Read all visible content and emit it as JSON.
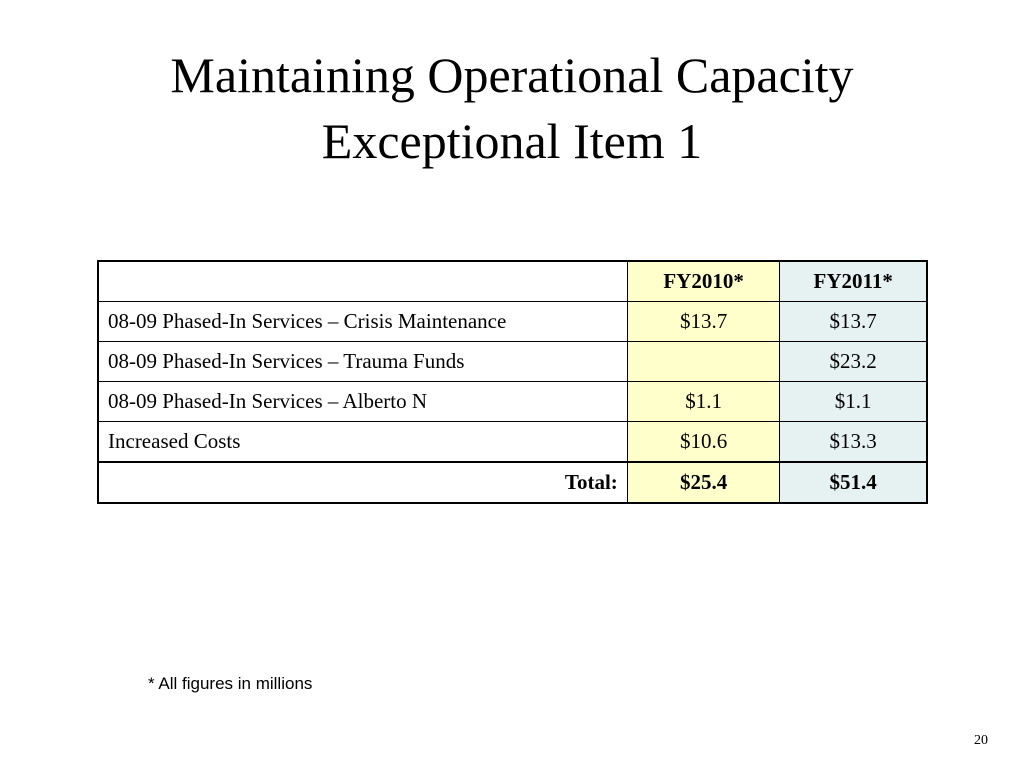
{
  "slide": {
    "title_line1": "Maintaining Operational Capacity",
    "title_line2": "Exceptional Item 1"
  },
  "table": {
    "headers": [
      "",
      "FY2010*",
      "FY2011*"
    ],
    "rows": [
      {
        "label": "08-09 Phased-In Services – Crisis Maintenance",
        "fy2010": "$13.7",
        "fy2011": "$13.7"
      },
      {
        "label": "08-09 Phased-In Services – Trauma Funds",
        "fy2010": "",
        "fy2011": "$23.2"
      },
      {
        "label": "08-09 Phased-In Services – Alberto N",
        "fy2010": "$1.1",
        "fy2011": "$1.1"
      },
      {
        "label": "Increased Costs",
        "fy2010": "$10.6",
        "fy2011": "$13.3"
      }
    ],
    "total": {
      "label": "Total:",
      "fy2010": "$25.4",
      "fy2011": "$51.4"
    }
  },
  "footnote": "* All figures in millions",
  "page_number": "20",
  "colors": {
    "fy2010_column": "#ffffcc",
    "fy2011_column": "#e6f2f2"
  }
}
